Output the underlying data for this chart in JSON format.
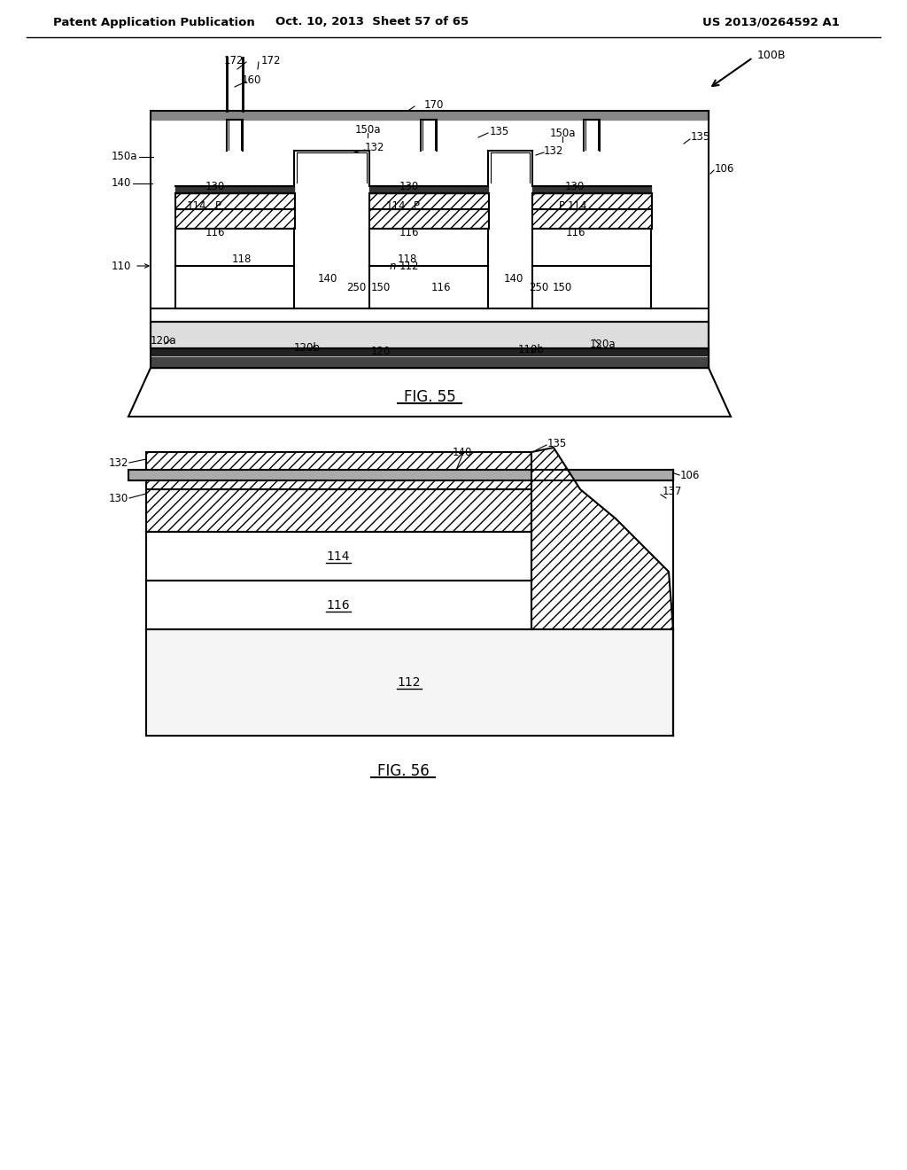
{
  "bg_color": "#ffffff",
  "header_left": "Patent Application Publication",
  "header_mid": "Oct. 10, 2013  Sheet 57 of 65",
  "header_right": "US 2013/0264592 A1",
  "line_color": "#000000"
}
